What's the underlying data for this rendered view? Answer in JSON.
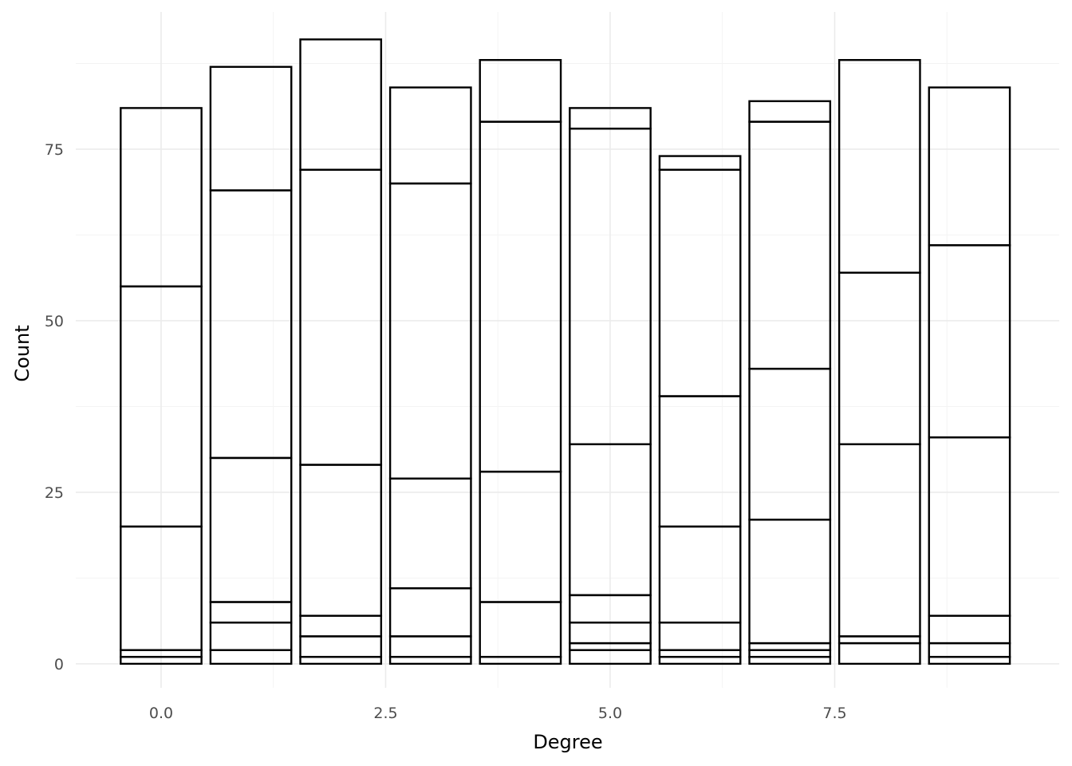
{
  "chart_data": {
    "type": "bar",
    "stacked": true,
    "xlabel": "Degree",
    "ylabel": "Count",
    "xlim": [
      -0.95,
      10.0
    ],
    "ylim": [
      -3.5,
      95
    ],
    "x_ticks": [
      0.0,
      2.5,
      5.0,
      7.5
    ],
    "x_tick_labels": [
      "0.0",
      "2.5",
      "5.0",
      "7.5"
    ],
    "y_ticks": [
      0,
      25,
      50,
      75
    ],
    "y_tick_labels": [
      "0",
      "25",
      "50",
      "75"
    ],
    "bar_width": 0.9,
    "grid": true,
    "legend": "none",
    "fill": "none",
    "stroke": "#000000",
    "bars": [
      {
        "x": 0,
        "boundaries": [
          0,
          1,
          2,
          20,
          55,
          81
        ]
      },
      {
        "x": 1,
        "boundaries": [
          0,
          2,
          6,
          9,
          30,
          69,
          87
        ]
      },
      {
        "x": 2,
        "boundaries": [
          0,
          1,
          4,
          7,
          29,
          72,
          91
        ]
      },
      {
        "x": 3,
        "boundaries": [
          0,
          1,
          4,
          11,
          27,
          70,
          84
        ]
      },
      {
        "x": 4,
        "boundaries": [
          0,
          1,
          9,
          28,
          79,
          88
        ]
      },
      {
        "x": 5,
        "boundaries": [
          0,
          2,
          3,
          6,
          10,
          32,
          78,
          81
        ]
      },
      {
        "x": 6,
        "boundaries": [
          0,
          1,
          2,
          6,
          20,
          39,
          72,
          74
        ]
      },
      {
        "x": 7,
        "boundaries": [
          0,
          1,
          2,
          3,
          21,
          43,
          79,
          82
        ]
      },
      {
        "x": 8,
        "boundaries": [
          0,
          3,
          4,
          32,
          57,
          88
        ]
      },
      {
        "x": 9,
        "boundaries": [
          0,
          1,
          3,
          7,
          33,
          61,
          84
        ]
      }
    ]
  }
}
